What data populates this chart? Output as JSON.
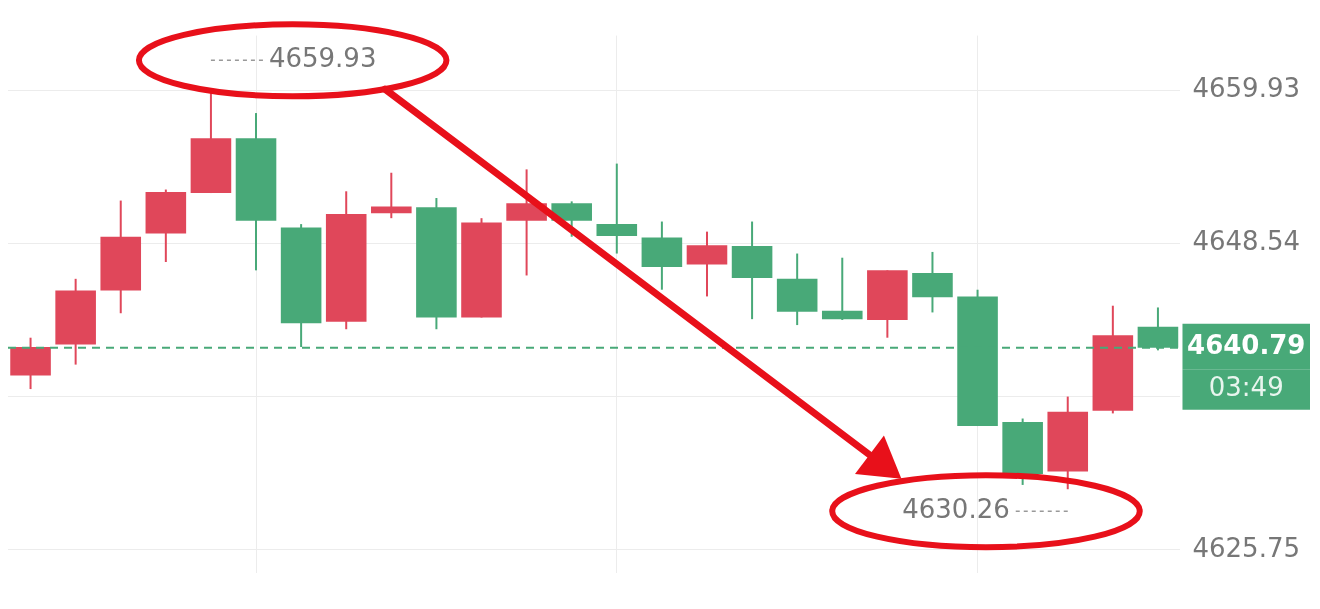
{
  "chart_data": {
    "type": "candlestick",
    "categories": [
      null,
      null,
      null,
      null,
      null,
      null,
      null,
      null,
      null,
      null,
      null,
      null,
      null,
      null,
      null,
      null,
      null,
      null,
      null,
      null,
      null,
      null,
      null,
      null,
      null,
      null
    ],
    "ohlc": [
      [
        4638.72,
        4641.53,
        4637.71,
        4640.84
      ],
      [
        4641.03,
        4645.91,
        4639.53,
        4645.04
      ],
      [
        4645.04,
        4651.73,
        4643.35,
        4649.04
      ],
      [
        4649.29,
        4652.55,
        4647.16,
        4652.36
      ],
      [
        4652.29,
        4659.93,
        4652.29,
        4656.36
      ],
      [
        4656.36,
        4658.24,
        4646.54,
        4650.23
      ],
      [
        4649.73,
        4649.98,
        4640.84,
        4642.6
      ],
      [
        4642.72,
        4652.42,
        4642.16,
        4650.73
      ],
      [
        4650.79,
        4653.8,
        4650.42,
        4651.29
      ],
      [
        4651.23,
        4651.92,
        4642.16,
        4643.03
      ],
      [
        4643.03,
        4650.42,
        4643.03,
        4650.1
      ],
      [
        4650.23,
        4654.05,
        4646.16,
        4651.54
      ],
      [
        4651.54,
        4651.67,
        4649.04,
        4650.23
      ],
      [
        4649.98,
        4654.48,
        4647.79,
        4649.1
      ],
      [
        4648.98,
        4650.17,
        4645.1,
        4646.79
      ],
      [
        4646.98,
        4649.42,
        4644.6,
        4648.41
      ],
      [
        4648.35,
        4650.17,
        4642.91,
        4645.97
      ],
      [
        4645.91,
        4647.79,
        4642.47,
        4643.47
      ],
      [
        4643.53,
        4647.48,
        4642.85,
        4642.91
      ],
      [
        4642.85,
        4646.54,
        4641.53,
        4646.54
      ],
      [
        4646.35,
        4647.91,
        4643.41,
        4644.53
      ],
      [
        4644.6,
        4645.1,
        4634.96,
        4634.96
      ],
      [
        4635.27,
        4635.52,
        4630.58,
        4631.39
      ],
      [
        4631.58,
        4637.15,
        4630.26,
        4636.02
      ],
      [
        4636.09,
        4643.91,
        4635.9,
        4641.72
      ],
      [
        4642.34,
        4643.78,
        4640.59,
        4640.79
      ]
    ],
    "colors": [
      "#e0475a",
      "#e0475a",
      "#e0475a",
      "#e0475a",
      "#e0475a",
      "#48a978",
      "#48a978",
      "#e0475a",
      "#e0475a",
      "#48a978",
      "#e0475a",
      "#e0475a",
      "#48a978",
      "#48a978",
      "#48a978",
      "#e0475a",
      "#48a978",
      "#48a978",
      "#48a978",
      "#e0475a",
      "#48a978",
      "#48a978",
      "#48a978",
      "#e0475a",
      "#e0475a",
      "#48a978"
    ],
    "ylim": [
      4624,
      4664
    ],
    "yticks": [
      4659.93,
      4648.54,
      {
        "value": 4637.15,
        "label": null
      },
      4625.75
    ],
    "grid": true,
    "ref_lines": [
      {
        "axis": "y",
        "value": 4640.79,
        "label": "4640.79",
        "color": "#48a978",
        "line_style": "dashed"
      }
    ],
    "annotations": [
      "4659.93",
      "4630.26",
      "03:49"
    ]
  }
}
